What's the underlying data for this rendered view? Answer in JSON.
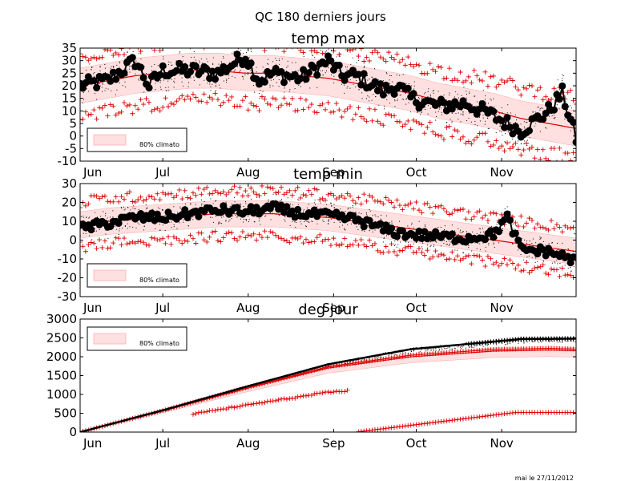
{
  "figure": {
    "suptitle": "QC 180 derniers jours",
    "footer": "mai le 27/11/2012"
  },
  "colors": {
    "band_fill": "#ffe0e0",
    "band_edge": "#ffb0b0",
    "red": "#dd0000",
    "obs": "#000000"
  },
  "chart_data": [
    {
      "type": "line",
      "title": "temp max",
      "x_domain": [
        0,
        180
      ],
      "x_ticks": [
        {
          "label": "Jun",
          "day": 0
        },
        {
          "label": "Jul",
          "day": 30
        },
        {
          "label": "Aug",
          "day": 61
        },
        {
          "label": "Sep",
          "day": 92
        },
        {
          "label": "Oct",
          "day": 122
        },
        {
          "label": "Nov",
          "day": 153
        }
      ],
      "ylim": [
        -10,
        35
      ],
      "y_ticks": [
        35,
        30,
        25,
        20,
        15,
        10,
        5,
        0,
        -5,
        -10
      ],
      "legend": {
        "label": "80% climato",
        "placement": "lower-left"
      },
      "model": "tmax",
      "series": [
        {
          "name": "observed",
          "x": [
            0,
            10,
            20,
            25,
            30,
            40,
            50,
            60,
            65,
            70,
            80,
            90,
            95,
            100,
            110,
            115,
            120,
            130,
            140,
            150,
            160,
            170,
            175,
            180
          ],
          "y": [
            20,
            22,
            30,
            20,
            26,
            26,
            25,
            32,
            22,
            25,
            23,
            30,
            24,
            24,
            18,
            20,
            15,
            12,
            13,
            8,
            2,
            10,
            17,
            -1
          ]
        },
        {
          "name": "climatology",
          "x": [
            0,
            10,
            20,
            30,
            40,
            50,
            60,
            70,
            80,
            90,
            100,
            110,
            120,
            130,
            140,
            150,
            160,
            170,
            180
          ],
          "y": [
            20,
            22,
            24,
            25,
            26,
            26,
            25,
            25,
            24,
            23,
            21,
            19,
            17,
            14,
            12,
            10,
            7,
            5,
            3
          ]
        }
      ]
    },
    {
      "type": "line",
      "title": "temp min",
      "x_domain": [
        0,
        180
      ],
      "x_ticks": [
        {
          "label": "Jun",
          "day": 0
        },
        {
          "label": "Jul",
          "day": 30
        },
        {
          "label": "Aug",
          "day": 61
        },
        {
          "label": "Sep",
          "day": 92
        },
        {
          "label": "Oct",
          "day": 122
        },
        {
          "label": "Nov",
          "day": 153
        }
      ],
      "ylim": [
        -30,
        30
      ],
      "y_ticks": [
        30,
        20,
        10,
        0,
        -10,
        -20,
        -30
      ],
      "legend": {
        "label": "80% climato",
        "placement": "lower-left"
      },
      "model": "tmin",
      "series": [
        {
          "name": "observed",
          "x": [
            0,
            10,
            20,
            30,
            40,
            50,
            60,
            70,
            80,
            90,
            100,
            110,
            115,
            120,
            130,
            140,
            150,
            155,
            160,
            170,
            180
          ],
          "y": [
            6,
            9,
            12,
            12,
            14,
            16,
            15,
            17,
            14,
            13,
            11,
            6,
            4,
            3,
            2,
            1,
            3,
            12,
            -5,
            -6,
            -11
          ]
        },
        {
          "name": "climatology",
          "x": [
            0,
            10,
            20,
            30,
            40,
            50,
            60,
            70,
            80,
            90,
            100,
            110,
            120,
            130,
            140,
            150,
            160,
            170,
            180
          ],
          "y": [
            8,
            10,
            11,
            12,
            13,
            14,
            14,
            14,
            13,
            12,
            10,
            8,
            6,
            4,
            2,
            0,
            -2,
            -4,
            -6
          ]
        }
      ]
    },
    {
      "type": "line",
      "title": "deg jour",
      "x_domain": [
        0,
        180
      ],
      "x_ticks": [
        {
          "label": "Jun",
          "day": 0
        },
        {
          "label": "Jul",
          "day": 30
        },
        {
          "label": "Aug",
          "day": 61
        },
        {
          "label": "Sep",
          "day": 92
        },
        {
          "label": "Oct",
          "day": 122
        },
        {
          "label": "Nov",
          "day": 153
        }
      ],
      "ylim": [
        0,
        3000
      ],
      "y_ticks": [
        3000,
        2500,
        2000,
        1500,
        1000,
        500,
        0
      ],
      "legend": {
        "label": "80% climato",
        "placement": "upper-left"
      },
      "model": "dd",
      "series": [
        {
          "name": "observed",
          "x": [
            0,
            30,
            60,
            90,
            120,
            150,
            160,
            180
          ],
          "y": [
            0,
            580,
            1200,
            1800,
            2200,
            2400,
            2470,
            2480
          ]
        },
        {
          "name": "climatology",
          "x": [
            0,
            30,
            60,
            90,
            120,
            150,
            170,
            180
          ],
          "y": [
            0,
            560,
            1150,
            1700,
            2000,
            2150,
            2180,
            2160
          ]
        }
      ]
    }
  ]
}
